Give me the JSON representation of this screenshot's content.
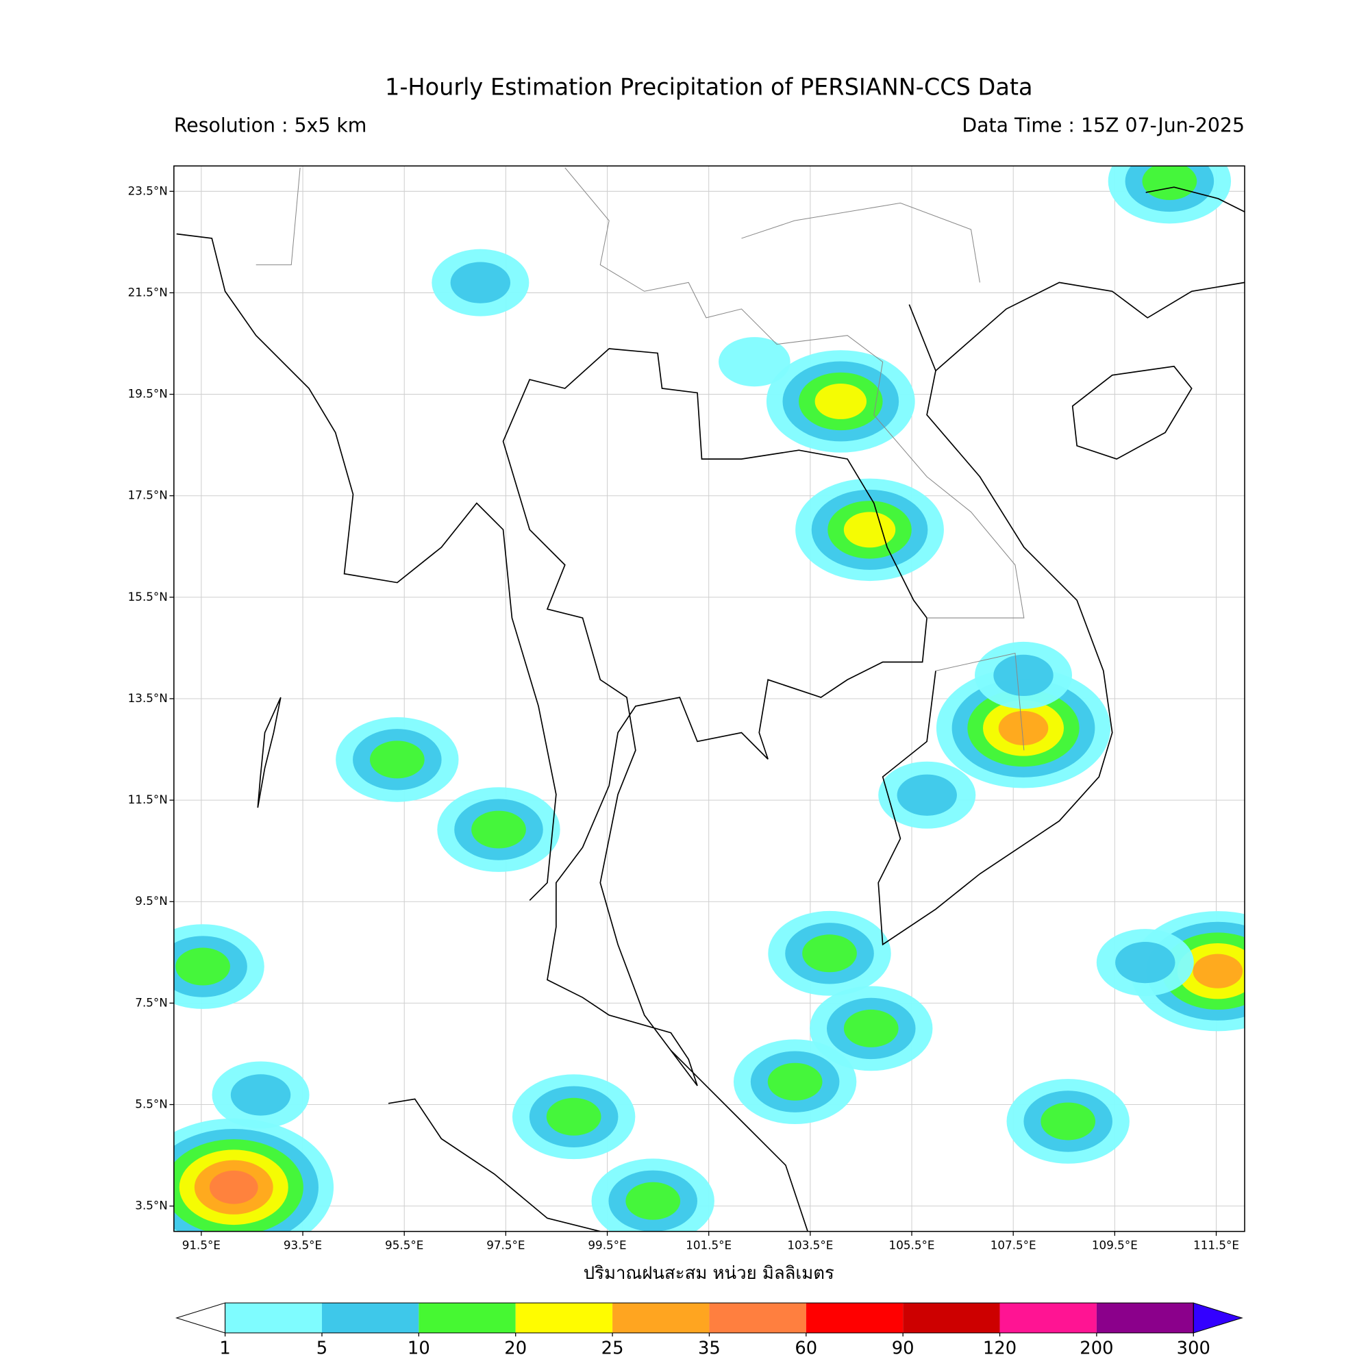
{
  "map": {
    "title": "1-Hourly Estimation Precipitation of PERSIANN-CCS Data",
    "resolution": "Resolution : 5x5 km",
    "data_time": "Data Time : 15Z 07-Jun-2025",
    "xlabel": "ปริมาณฝนสะสม หน่วย มิลลิเมตร",
    "xlim": [
      90.96,
      112.06
    ],
    "ylim": [
      3,
      24
    ],
    "grid": true,
    "xticks": [
      {
        "value": 91.5,
        "label": "91.5°E"
      },
      {
        "value": 93.5,
        "label": "93.5°E"
      },
      {
        "value": 95.5,
        "label": "95.5°E"
      },
      {
        "value": 97.5,
        "label": "97.5°E"
      },
      {
        "value": 99.5,
        "label": "99.5°E"
      },
      {
        "value": 101.5,
        "label": "101.5°E"
      },
      {
        "value": 103.5,
        "label": "103.5°E"
      },
      {
        "value": 105.5,
        "label": "105.5°E"
      },
      {
        "value": 107.5,
        "label": "107.5°E"
      },
      {
        "value": 109.5,
        "label": "109.5°E"
      },
      {
        "value": 111.5,
        "label": "111.5°E"
      }
    ],
    "yticks": [
      {
        "value": 23.5,
        "label": "23.5°N"
      },
      {
        "value": 21.5,
        "label": "21.5°N"
      },
      {
        "value": 19.5,
        "label": "19.5°N"
      },
      {
        "value": 17.5,
        "label": "17.5°N"
      },
      {
        "value": 15.5,
        "label": "15.5°N"
      },
      {
        "value": 13.5,
        "label": "13.5°N"
      },
      {
        "value": 11.5,
        "label": "11.5°N"
      },
      {
        "value": 9.5,
        "label": "9.5°N"
      },
      {
        "value": 7.5,
        "label": "7.5°N"
      },
      {
        "value": 5.5,
        "label": "5.5°N"
      },
      {
        "value": 3.5,
        "label": "3.5°N"
      }
    ],
    "colorbar": {
      "levels": [
        1,
        5,
        10,
        20,
        25,
        35,
        60,
        90,
        120,
        200,
        300
      ],
      "colors": [
        "#7ffcff",
        "#3ec8ea",
        "#46f832",
        "#fffc00",
        "#ffa520",
        "#ff7f3f",
        "#ff0000",
        "#cd0000",
        "#ff1493",
        "#8b008b"
      ],
      "under_color": "#ffffff",
      "over_color": "#3300ff"
    },
    "rain_cells": [
      {
        "lon": 97.36,
        "lat": 10.92,
        "mm": 12
      },
      {
        "lon": 95.36,
        "lat": 12.3,
        "mm": 12
      },
      {
        "lon": 104.1,
        "lat": 19.36,
        "mm": 22
      },
      {
        "lon": 104.67,
        "lat": 16.83,
        "mm": 22
      },
      {
        "lon": 107.7,
        "lat": 12.92,
        "mm": 30
      },
      {
        "lon": 107.7,
        "lat": 13.96,
        "mm": 6
      },
      {
        "lon": 102.4,
        "lat": 20.14,
        "mm": 4
      },
      {
        "lon": 97.0,
        "lat": 21.7,
        "mm": 6
      },
      {
        "lon": 91.53,
        "lat": 8.22,
        "mm": 15
      },
      {
        "lon": 92.14,
        "lat": 3.87,
        "mm": 40
      },
      {
        "lon": 92.67,
        "lat": 5.69,
        "mm": 8
      },
      {
        "lon": 98.84,
        "lat": 5.26,
        "mm": 12
      },
      {
        "lon": 108.58,
        "lat": 5.17,
        "mm": 12
      },
      {
        "lon": 111.53,
        "lat": 8.13,
        "mm": 30
      },
      {
        "lon": 103.88,
        "lat": 8.48,
        "mm": 12
      },
      {
        "lon": 100.4,
        "lat": 3.6,
        "mm": 12
      },
      {
        "lon": 110.1,
        "lat": 8.3,
        "mm": 6
      },
      {
        "lon": 105.8,
        "lat": 11.6,
        "mm": 6
      },
      {
        "lon": 110.58,
        "lat": 23.7,
        "mm": 12
      },
      {
        "lon": 104.7,
        "lat": 7.0,
        "mm": 12
      },
      {
        "lon": 103.2,
        "lat": 5.95,
        "mm": 12
      }
    ]
  }
}
